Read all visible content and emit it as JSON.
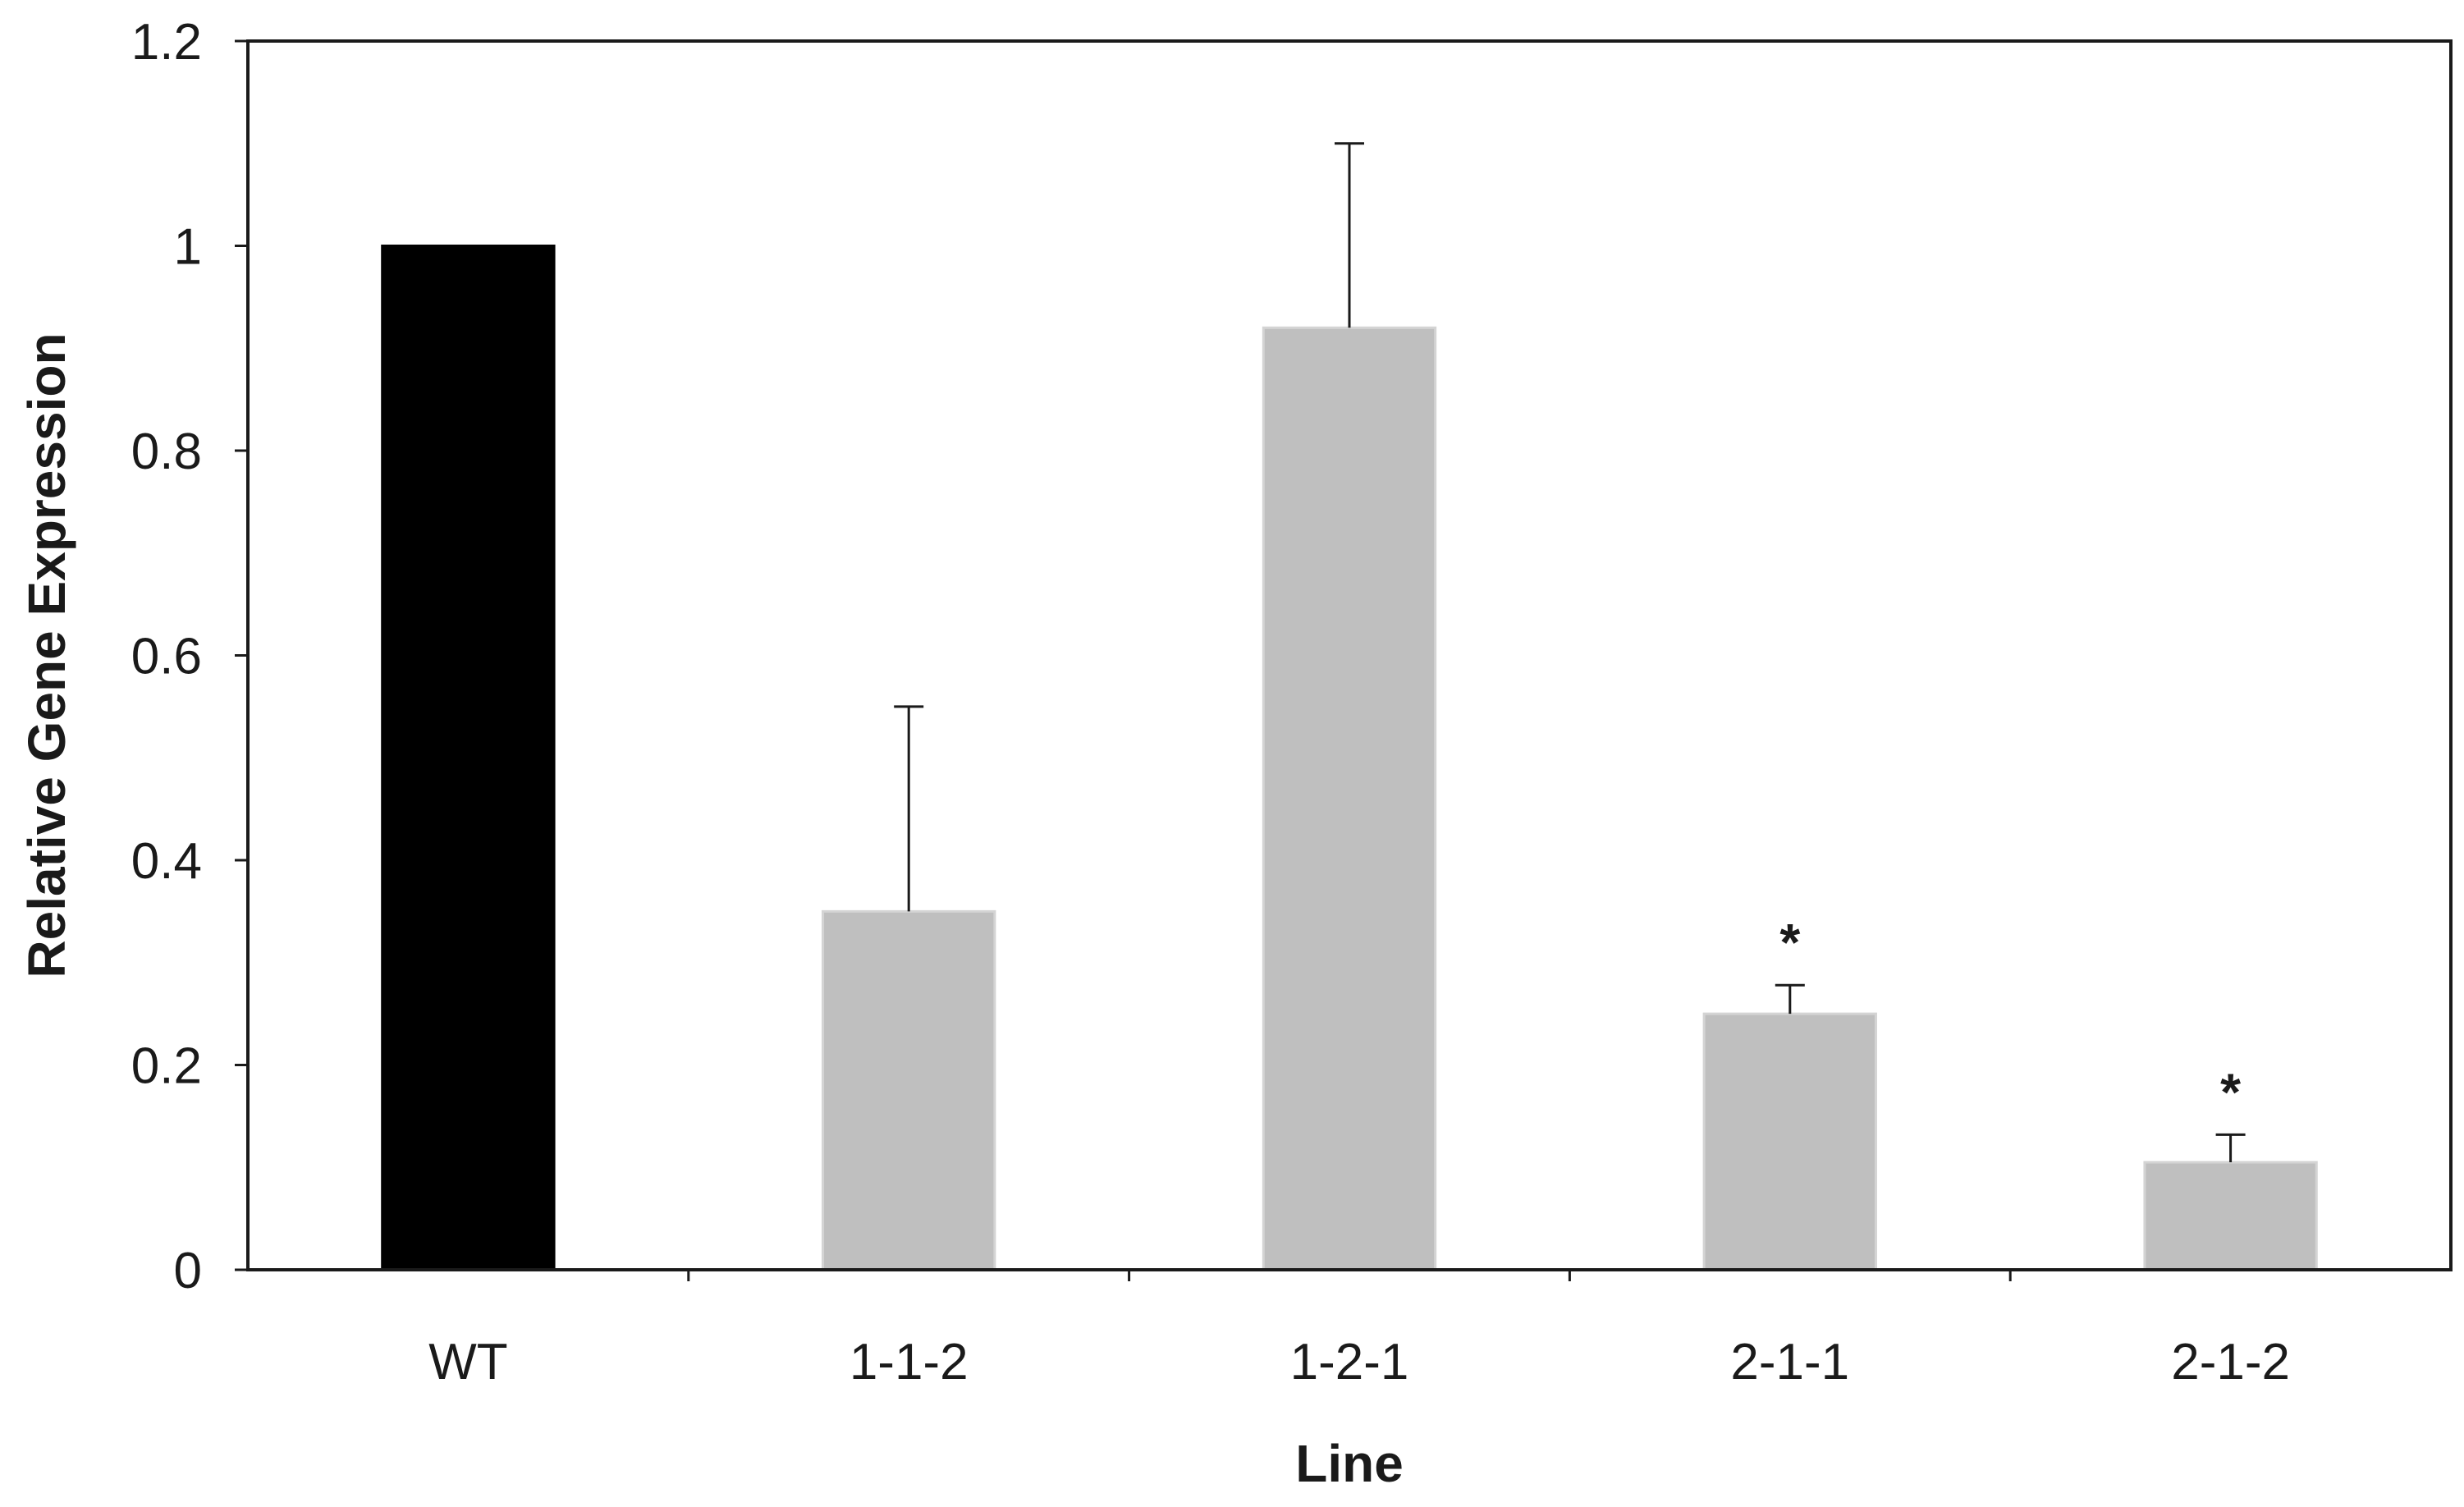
{
  "chart_data": {
    "type": "bar",
    "categories": [
      "WT",
      "1-1-2",
      "1-2-1",
      "2-1-1",
      "2-1-2"
    ],
    "values": [
      1.0,
      0.35,
      0.92,
      0.25,
      0.105
    ],
    "errors": [
      0.0,
      0.2,
      0.18,
      0.028,
      0.027
    ],
    "annotations": [
      "",
      "",
      "",
      "*",
      "*"
    ],
    "bar_colors": [
      "#000000",
      "#bfbfbf",
      "#bfbfbf",
      "#bfbfbf",
      "#bfbfbf"
    ],
    "xlabel": "Line",
    "ylabel": "Relative Gene Expression",
    "ylim": [
      0,
      1.2
    ],
    "yticks": [
      0,
      0.2,
      0.4,
      0.6,
      0.8,
      1,
      1.2
    ],
    "ytick_labels": [
      "0",
      "0.2",
      "0.4",
      "0.6",
      "0.8",
      "1",
      "1.2"
    ],
    "grid": false,
    "legend": "none"
  }
}
